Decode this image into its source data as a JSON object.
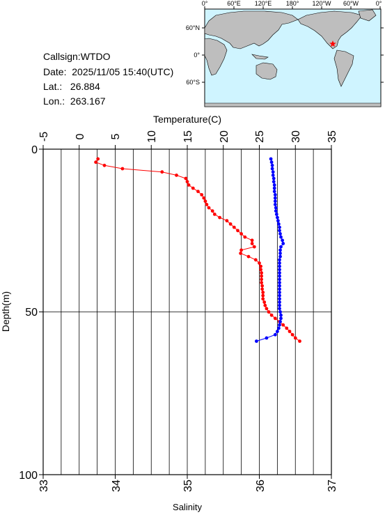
{
  "station": {
    "callsign": "Callsign:WTDO",
    "date": "Date:  2025/11/05 15:40(UTC)",
    "lat": "Lat.:   26.884",
    "lon": "Lon.:  263.167"
  },
  "map": {
    "top_labels": [
      "0°",
      "60°E",
      "120°E",
      "180°",
      "120°W",
      "60°W",
      "0°"
    ],
    "lat_labels": [
      "60°N",
      "0°",
      "60°S"
    ],
    "ocean_color": "#cff4ff",
    "land_color": "#bebebe",
    "marker_color": "#ff0000",
    "marker": {
      "lon": 263.167,
      "lat": 26.884
    }
  },
  "chart_data": {
    "type": "scatter",
    "title": "",
    "x_top_label": "Temperature(C)",
    "x_bottom_label": "Salinity",
    "y_label": "Depth(m)",
    "temperature_ticks": [
      "-5",
      "0",
      "5",
      "10",
      "15",
      "20",
      "25",
      "30",
      "35"
    ],
    "salinity_ticks": [
      "33",
      "34",
      "35",
      "36",
      "37"
    ],
    "depth_ticks": [
      "0",
      "50",
      "100"
    ],
    "temperature_range": [
      -5,
      35
    ],
    "salinity_range": [
      33,
      37
    ],
    "depth_range": [
      0,
      100
    ],
    "grid": true,
    "series": [
      {
        "axis": "temperature",
        "color": "#ff0000",
        "points": [
          {
            "depth": 3.0,
            "value": 2.6
          },
          {
            "depth": 4.0,
            "value": 2.3
          },
          {
            "depth": 5.0,
            "value": 3.5
          },
          {
            "depth": 6.0,
            "value": 6.0
          },
          {
            "depth": 7.0,
            "value": 11.5
          },
          {
            "depth": 8.0,
            "value": 13.5
          },
          {
            "depth": 9.0,
            "value": 14.8
          },
          {
            "depth": 10.0,
            "value": 15.0
          },
          {
            "depth": 11.0,
            "value": 15.2
          },
          {
            "depth": 12.0,
            "value": 15.8
          },
          {
            "depth": 13.0,
            "value": 16.5
          },
          {
            "depth": 14.0,
            "value": 17.0
          },
          {
            "depth": 15.0,
            "value": 17.3
          },
          {
            "depth": 16.0,
            "value": 17.5
          },
          {
            "depth": 17.0,
            "value": 17.7
          },
          {
            "depth": 18.0,
            "value": 18.0
          },
          {
            "depth": 19.0,
            "value": 18.5
          },
          {
            "depth": 20.0,
            "value": 18.8
          },
          {
            "depth": 21.0,
            "value": 19.5
          },
          {
            "depth": 22.0,
            "value": 20.5
          },
          {
            "depth": 23.0,
            "value": 21.0
          },
          {
            "depth": 24.0,
            "value": 21.5
          },
          {
            "depth": 25.0,
            "value": 22.0
          },
          {
            "depth": 26.0,
            "value": 22.5
          },
          {
            "depth": 27.0,
            "value": 23.0
          },
          {
            "depth": 28.0,
            "value": 24.0
          },
          {
            "depth": 29.0,
            "value": 24.0
          },
          {
            "depth": 30.0,
            "value": 24.3
          },
          {
            "depth": 31.0,
            "value": 22.5
          },
          {
            "depth": 32.0,
            "value": 22.4
          },
          {
            "depth": 33.0,
            "value": 23.5
          },
          {
            "depth": 34.0,
            "value": 24.5
          },
          {
            "depth": 35.0,
            "value": 25.0
          },
          {
            "depth": 36.0,
            "value": 25.2
          },
          {
            "depth": 37.0,
            "value": 25.2
          },
          {
            "depth": 38.0,
            "value": 25.3
          },
          {
            "depth": 39.0,
            "value": 25.3
          },
          {
            "depth": 40.0,
            "value": 25.3
          },
          {
            "depth": 41.0,
            "value": 25.3
          },
          {
            "depth": 42.0,
            "value": 25.4
          },
          {
            "depth": 43.0,
            "value": 25.4
          },
          {
            "depth": 44.0,
            "value": 25.5
          },
          {
            "depth": 45.0,
            "value": 25.5
          },
          {
            "depth": 46.0,
            "value": 25.5
          },
          {
            "depth": 47.0,
            "value": 25.7
          },
          {
            "depth": 48.0,
            "value": 25.8
          },
          {
            "depth": 49.0,
            "value": 26.0
          },
          {
            "depth": 50.0,
            "value": 26.3
          },
          {
            "depth": 51.0,
            "value": 26.7
          },
          {
            "depth": 52.0,
            "value": 27.2
          },
          {
            "depth": 53.0,
            "value": 27.8
          },
          {
            "depth": 54.0,
            "value": 28.3
          },
          {
            "depth": 55.0,
            "value": 28.8
          },
          {
            "depth": 56.0,
            "value": 29.2
          },
          {
            "depth": 57.0,
            "value": 29.6
          },
          {
            "depth": 58.0,
            "value": 30.0
          },
          {
            "depth": 59.0,
            "value": 30.6
          }
        ]
      },
      {
        "axis": "salinity",
        "color": "#0000ff",
        "points": [
          {
            "depth": 3.0,
            "value": 36.16
          },
          {
            "depth": 4.0,
            "value": 36.17
          },
          {
            "depth": 5.0,
            "value": 36.18
          },
          {
            "depth": 6.0,
            "value": 36.18
          },
          {
            "depth": 7.0,
            "value": 36.19
          },
          {
            "depth": 8.0,
            "value": 36.19
          },
          {
            "depth": 9.0,
            "value": 36.2
          },
          {
            "depth": 10.0,
            "value": 36.2
          },
          {
            "depth": 11.0,
            "value": 36.21
          },
          {
            "depth": 12.0,
            "value": 36.21
          },
          {
            "depth": 13.0,
            "value": 36.21
          },
          {
            "depth": 14.0,
            "value": 36.22
          },
          {
            "depth": 15.0,
            "value": 36.22
          },
          {
            "depth": 16.0,
            "value": 36.22
          },
          {
            "depth": 17.0,
            "value": 36.22
          },
          {
            "depth": 18.0,
            "value": 36.23
          },
          {
            "depth": 19.0,
            "value": 36.23
          },
          {
            "depth": 20.0,
            "value": 36.24
          },
          {
            "depth": 21.0,
            "value": 36.25
          },
          {
            "depth": 22.0,
            "value": 36.26
          },
          {
            "depth": 23.0,
            "value": 36.27
          },
          {
            "depth": 24.0,
            "value": 36.28
          },
          {
            "depth": 25.0,
            "value": 36.28
          },
          {
            "depth": 26.0,
            "value": 36.29
          },
          {
            "depth": 27.0,
            "value": 36.3
          },
          {
            "depth": 28.0,
            "value": 36.32
          },
          {
            "depth": 29.0,
            "value": 36.33
          },
          {
            "depth": 30.0,
            "value": 36.3
          },
          {
            "depth": 31.0,
            "value": 36.29
          },
          {
            "depth": 32.0,
            "value": 36.29
          },
          {
            "depth": 33.0,
            "value": 36.29
          },
          {
            "depth": 34.0,
            "value": 36.28
          },
          {
            "depth": 35.0,
            "value": 36.28
          },
          {
            "depth": 36.0,
            "value": 36.28
          },
          {
            "depth": 37.0,
            "value": 36.28
          },
          {
            "depth": 38.0,
            "value": 36.28
          },
          {
            "depth": 39.0,
            "value": 36.28
          },
          {
            "depth": 40.0,
            "value": 36.28
          },
          {
            "depth": 41.0,
            "value": 36.28
          },
          {
            "depth": 42.0,
            "value": 36.28
          },
          {
            "depth": 43.0,
            "value": 36.28
          },
          {
            "depth": 44.0,
            "value": 36.28
          },
          {
            "depth": 45.0,
            "value": 36.28
          },
          {
            "depth": 46.0,
            "value": 36.28
          },
          {
            "depth": 47.0,
            "value": 36.28
          },
          {
            "depth": 48.0,
            "value": 36.28
          },
          {
            "depth": 49.0,
            "value": 36.28
          },
          {
            "depth": 50.0,
            "value": 36.29
          },
          {
            "depth": 51.0,
            "value": 36.3
          },
          {
            "depth": 52.0,
            "value": 36.3
          },
          {
            "depth": 53.0,
            "value": 36.29
          },
          {
            "depth": 54.0,
            "value": 36.28
          },
          {
            "depth": 55.0,
            "value": 36.27
          },
          {
            "depth": 56.0,
            "value": 36.25
          },
          {
            "depth": 57.0,
            "value": 36.22
          },
          {
            "depth": 58.0,
            "value": 36.1
          },
          {
            "depth": 59.0,
            "value": 35.96
          }
        ]
      }
    ]
  }
}
